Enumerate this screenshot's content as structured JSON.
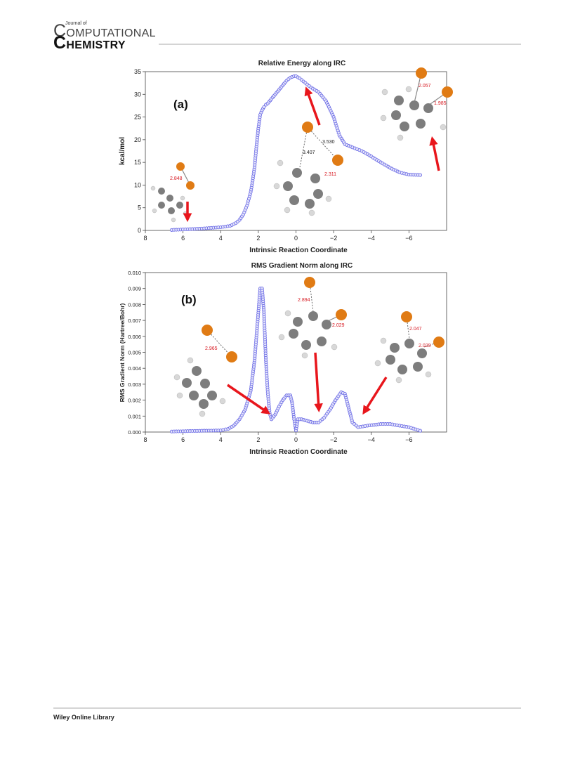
{
  "header": {
    "journal_prefix": "Journal of",
    "logo_line1_first": "C",
    "logo_line1_rest": "OMPUTATIONAL",
    "logo_line2_first": "C",
    "logo_line2_rest": "HEMISTRY"
  },
  "footer": {
    "text": "Wiley Online Library"
  },
  "colors": {
    "marker": "#6f6fe6",
    "marker_fill": "#e6e6fb",
    "line": "#000000",
    "arrow": "#e8161c",
    "bromine": "#e07b14",
    "carbon": "#7d7d7d",
    "hydrogen": "#d8d8d8",
    "distance_label": "#d81c24"
  },
  "chart_data": [
    {
      "type": "line",
      "panel_label": "(a)",
      "title": "Relative Energy along IRC",
      "xlabel": "Intrinsic Reaction Coordinate",
      "ylabel": "kcal/mol",
      "xlim": [
        8,
        -8
      ],
      "ylim": [
        0,
        35
      ],
      "xticks": [
        "8",
        "6",
        "4",
        "2",
        "0",
        "−2",
        "−4",
        "−6"
      ],
      "yticks": [
        "0",
        "5",
        "10",
        "15",
        "20",
        "25",
        "30",
        "35"
      ],
      "grid": false,
      "x": [
        6.6,
        6.0,
        5.0,
        4.0,
        3.5,
        3.2,
        3.0,
        2.8,
        2.6,
        2.4,
        2.3,
        2.2,
        2.1,
        2.0,
        1.9,
        1.8,
        1.7,
        1.6,
        1.5,
        1.3,
        1.1,
        0.9,
        0.7,
        0.5,
        0.3,
        0.1,
        0.0,
        -0.2,
        -0.5,
        -0.8,
        -1.2,
        -1.6,
        -2.0,
        -2.3,
        -2.6,
        -3.0,
        -3.5,
        -4.0,
        -4.5,
        -5.0,
        -5.5,
        -6.0,
        -6.6
      ],
      "y": [
        0.1,
        0.2,
        0.4,
        0.7,
        1.0,
        1.6,
        2.3,
        3.5,
        5.5,
        8.5,
        11.0,
        14.0,
        18.5,
        22.5,
        25.5,
        26.5,
        27.2,
        27.7,
        28.0,
        29.0,
        30.0,
        31.0,
        32.0,
        33.0,
        33.7,
        34.0,
        34.0,
        33.5,
        32.5,
        31.5,
        30.5,
        28.5,
        25.0,
        21.0,
        19.0,
        18.3,
        17.5,
        16.3,
        15.0,
        13.8,
        12.8,
        12.3,
        12.2
      ]
    },
    {
      "type": "line",
      "panel_label": "(b)",
      "title": "RMS Gradient Norm along IRC",
      "xlabel": "Intrinsic Reaction Coordinate",
      "ylabel": "RMS Gradient Norm (Hartree/Bohr)",
      "xlim": [
        8,
        -8
      ],
      "ylim": [
        0,
        0.01
      ],
      "xticks": [
        "8",
        "6",
        "4",
        "2",
        "0",
        "−2",
        "−4",
        "−6"
      ],
      "yticks": [
        "0.000",
        "0.001",
        "0.002",
        "0.003",
        "0.004",
        "0.005",
        "0.006",
        "0.007",
        "0.008",
        "0.009",
        "0.010"
      ],
      "grid": false,
      "x": [
        6.6,
        6.0,
        5.0,
        4.0,
        3.6,
        3.3,
        3.0,
        2.7,
        2.4,
        2.2,
        2.0,
        1.9,
        1.8,
        1.7,
        1.6,
        1.5,
        1.4,
        1.3,
        1.1,
        0.9,
        0.7,
        0.5,
        0.3,
        0.2,
        0.1,
        0.0,
        -0.1,
        -0.3,
        -0.6,
        -0.9,
        -1.2,
        -1.5,
        -1.8,
        -2.1,
        -2.4,
        -2.6,
        -2.8,
        -3.0,
        -3.3,
        -3.8,
        -4.5,
        -5.0,
        -5.5,
        -6.0,
        -6.6
      ],
      "y": [
        3e-05,
        5e-05,
        8e-05,
        0.0001,
        0.0002,
        0.0004,
        0.0008,
        0.0014,
        0.0026,
        0.0045,
        0.0075,
        0.009,
        0.009,
        0.0075,
        0.0045,
        0.0025,
        0.0012,
        0.0008,
        0.0011,
        0.0016,
        0.002,
        0.0023,
        0.0023,
        0.0018,
        0.0008,
        0.0001,
        0.0008,
        0.0008,
        0.0007,
        0.0006,
        0.0006,
        0.0009,
        0.0014,
        0.002,
        0.0025,
        0.0024,
        0.0015,
        0.0006,
        0.0003,
        0.0004,
        0.0005,
        0.0005,
        0.0004,
        0.0003,
        8e-05
      ]
    }
  ],
  "annotations": {
    "a": {
      "distances": [
        "2.848",
        "3.530",
        "3.407",
        "2.311",
        "2.057",
        "1.985"
      ]
    },
    "b": {
      "distances": [
        "2.965",
        "2.894",
        "2.029",
        "2.047",
        "2.029"
      ]
    }
  }
}
